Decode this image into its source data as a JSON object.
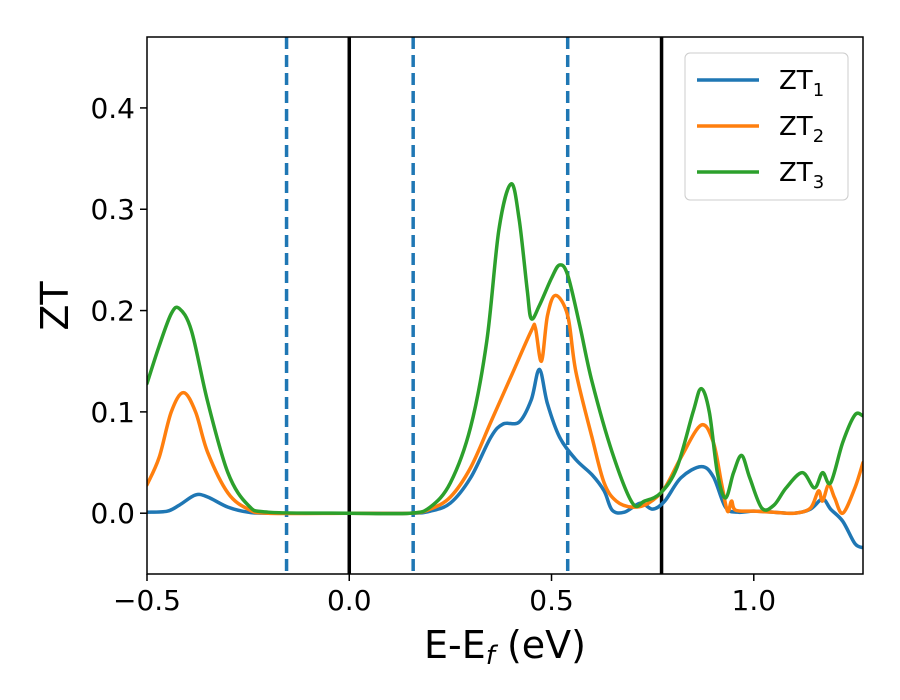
{
  "chart_data": {
    "type": "line",
    "title": "",
    "xlabel": "E-E_f (eV)",
    "xlabel_main": "E-E",
    "xlabel_sub": "f",
    "xlabel_tail": " (eV)",
    "ylabel": "ZT",
    "xlim": [
      -0.5,
      1.27
    ],
    "ylim": [
      -0.06,
      0.47
    ],
    "xticks": [
      -0.5,
      0.0,
      0.5,
      1.0
    ],
    "xtick_labels": [
      "−0.5",
      "0.0",
      "0.5",
      "1.0"
    ],
    "yticks": [
      0.0,
      0.1,
      0.2,
      0.3,
      0.4
    ],
    "ytick_labels": [
      "0.0",
      "0.1",
      "0.2",
      "0.3",
      "0.4"
    ],
    "vlines": [
      {
        "x": -0.155,
        "style": "dashed",
        "color": "#1f77b4"
      },
      {
        "x": 0.0,
        "style": "solid",
        "color": "#000000"
      },
      {
        "x": 0.158,
        "style": "dashed",
        "color": "#1f77b4"
      },
      {
        "x": 0.54,
        "style": "dashed",
        "color": "#1f77b4"
      },
      {
        "x": 0.772,
        "style": "solid",
        "color": "#000000"
      }
    ],
    "legend_position": "top-right",
    "series": [
      {
        "name": "ZT",
        "sub": "1",
        "color": "#1f77b4",
        "points": [
          [
            -0.5,
            0.001
          ],
          [
            -0.45,
            0.002
          ],
          [
            -0.42,
            0.008
          ],
          [
            -0.38,
            0.018
          ],
          [
            -0.35,
            0.016
          ],
          [
            -0.3,
            0.006
          ],
          [
            -0.25,
            0.001
          ],
          [
            -0.2,
            0.0
          ],
          [
            0.0,
            0.0
          ],
          [
            0.15,
            0.0
          ],
          [
            0.2,
            0.002
          ],
          [
            0.25,
            0.01
          ],
          [
            0.3,
            0.035
          ],
          [
            0.35,
            0.075
          ],
          [
            0.38,
            0.088
          ],
          [
            0.42,
            0.09
          ],
          [
            0.45,
            0.112
          ],
          [
            0.47,
            0.142
          ],
          [
            0.49,
            0.108
          ],
          [
            0.52,
            0.075
          ],
          [
            0.56,
            0.053
          ],
          [
            0.6,
            0.038
          ],
          [
            0.63,
            0.022
          ],
          [
            0.65,
            0.003
          ],
          [
            0.68,
            0.001
          ],
          [
            0.72,
            0.01
          ],
          [
            0.75,
            0.004
          ],
          [
            0.78,
            0.012
          ],
          [
            0.82,
            0.035
          ],
          [
            0.87,
            0.046
          ],
          [
            0.9,
            0.036
          ],
          [
            0.93,
            0.006
          ],
          [
            0.96,
            0.001
          ],
          [
            1.0,
            0.002
          ],
          [
            1.05,
            0.001
          ],
          [
            1.1,
            0.0
          ],
          [
            1.14,
            0.004
          ],
          [
            1.17,
            0.014
          ],
          [
            1.19,
            0.004
          ],
          [
            1.22,
            -0.008
          ],
          [
            1.25,
            -0.03
          ],
          [
            1.27,
            -0.034
          ]
        ]
      },
      {
        "name": "ZT",
        "sub": "2",
        "color": "#ff7f0e",
        "points": [
          [
            -0.5,
            0.028
          ],
          [
            -0.47,
            0.055
          ],
          [
            -0.44,
            0.1
          ],
          [
            -0.41,
            0.119
          ],
          [
            -0.38,
            0.1
          ],
          [
            -0.35,
            0.06
          ],
          [
            -0.3,
            0.02
          ],
          [
            -0.25,
            0.004
          ],
          [
            -0.2,
            0.0
          ],
          [
            0.0,
            0.0
          ],
          [
            0.15,
            0.0
          ],
          [
            0.2,
            0.004
          ],
          [
            0.25,
            0.016
          ],
          [
            0.3,
            0.045
          ],
          [
            0.35,
            0.09
          ],
          [
            0.4,
            0.135
          ],
          [
            0.45,
            0.18
          ],
          [
            0.46,
            0.183
          ],
          [
            0.475,
            0.15
          ],
          [
            0.49,
            0.195
          ],
          [
            0.51,
            0.215
          ],
          [
            0.54,
            0.195
          ],
          [
            0.56,
            0.14
          ],
          [
            0.6,
            0.075
          ],
          [
            0.63,
            0.03
          ],
          [
            0.66,
            0.012
          ],
          [
            0.7,
            0.006
          ],
          [
            0.74,
            0.01
          ],
          [
            0.78,
            0.025
          ],
          [
            0.82,
            0.055
          ],
          [
            0.87,
            0.087
          ],
          [
            0.9,
            0.07
          ],
          [
            0.92,
            0.03
          ],
          [
            0.935,
            0.002
          ],
          [
            0.945,
            0.012
          ],
          [
            0.955,
            0.003
          ],
          [
            1.0,
            0.002
          ],
          [
            1.05,
            0.001
          ],
          [
            1.1,
            0.0
          ],
          [
            1.14,
            0.005
          ],
          [
            1.16,
            0.022
          ],
          [
            1.17,
            0.012
          ],
          [
            1.185,
            0.028
          ],
          [
            1.2,
            0.015
          ],
          [
            1.22,
            0.0
          ],
          [
            1.25,
            0.025
          ],
          [
            1.27,
            0.05
          ]
        ]
      },
      {
        "name": "ZT",
        "sub": "3",
        "color": "#2ca02c",
        "points": [
          [
            -0.5,
            0.128
          ],
          [
            -0.47,
            0.165
          ],
          [
            -0.44,
            0.197
          ],
          [
            -0.42,
            0.202
          ],
          [
            -0.39,
            0.18
          ],
          [
            -0.35,
            0.11
          ],
          [
            -0.3,
            0.04
          ],
          [
            -0.25,
            0.008
          ],
          [
            -0.2,
            0.001
          ],
          [
            0.0,
            0.0
          ],
          [
            0.15,
            0.0
          ],
          [
            0.2,
            0.006
          ],
          [
            0.25,
            0.03
          ],
          [
            0.3,
            0.085
          ],
          [
            0.34,
            0.17
          ],
          [
            0.37,
            0.28
          ],
          [
            0.4,
            0.325
          ],
          [
            0.42,
            0.29
          ],
          [
            0.44,
            0.22
          ],
          [
            0.45,
            0.192
          ],
          [
            0.47,
            0.205
          ],
          [
            0.5,
            0.232
          ],
          [
            0.52,
            0.245
          ],
          [
            0.54,
            0.235
          ],
          [
            0.57,
            0.185
          ],
          [
            0.6,
            0.13
          ],
          [
            0.65,
            0.06
          ],
          [
            0.7,
            0.01
          ],
          [
            0.73,
            0.012
          ],
          [
            0.77,
            0.02
          ],
          [
            0.81,
            0.045
          ],
          [
            0.85,
            0.1
          ],
          [
            0.87,
            0.123
          ],
          [
            0.89,
            0.1
          ],
          [
            0.91,
            0.04
          ],
          [
            0.93,
            0.015
          ],
          [
            0.95,
            0.04
          ],
          [
            0.97,
            0.057
          ],
          [
            0.99,
            0.035
          ],
          [
            1.02,
            0.005
          ],
          [
            1.05,
            0.008
          ],
          [
            1.08,
            0.025
          ],
          [
            1.12,
            0.04
          ],
          [
            1.15,
            0.025
          ],
          [
            1.17,
            0.04
          ],
          [
            1.19,
            0.03
          ],
          [
            1.22,
            0.07
          ],
          [
            1.25,
            0.097
          ],
          [
            1.27,
            0.096
          ]
        ]
      }
    ]
  }
}
